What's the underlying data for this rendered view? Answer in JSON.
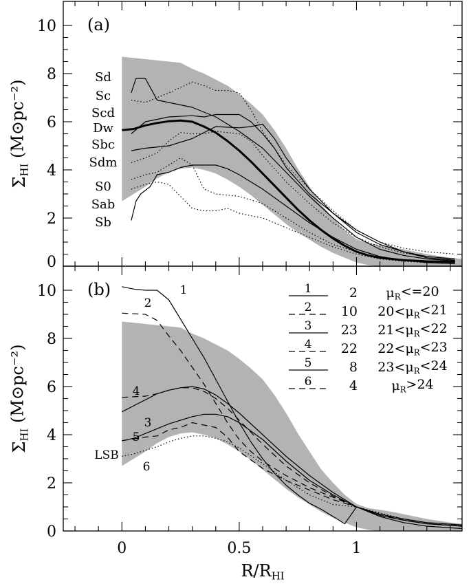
{
  "chart_data": [
    {
      "panel": "(a)",
      "type": "line",
      "xlabel": "",
      "ylabel": "Σ_HI (M⊙pc⁻²)",
      "xlim": [
        -0.25,
        1.45
      ],
      "ylim": [
        0,
        11
      ],
      "yticks": [
        "0",
        "2",
        "4",
        "6",
        "8",
        "10"
      ],
      "xticks": [],
      "band": {
        "x": [
          0,
          0.05,
          0.1,
          0.15,
          0.2,
          0.25,
          0.3,
          0.35,
          0.4,
          0.45,
          0.5,
          0.55,
          0.6,
          0.65,
          0.7,
          0.75,
          0.8,
          0.85,
          0.9,
          0.95,
          1.0,
          1.05,
          1.1,
          1.15,
          1.2,
          1.3,
          1.4,
          1.45
        ],
        "upper": [
          8.7,
          8.65,
          8.6,
          8.55,
          8.5,
          8.45,
          8.2,
          8.0,
          7.75,
          7.5,
          7.15,
          6.75,
          6.3,
          5.65,
          4.9,
          4.05,
          3.3,
          2.55,
          2.0,
          1.5,
          1.12,
          0.95,
          0.88,
          0.8,
          0.7,
          0.5,
          0.35,
          0.3
        ],
        "lower": [
          2.7,
          3.0,
          3.3,
          3.65,
          3.9,
          4.05,
          4.1,
          4.0,
          3.85,
          3.6,
          3.3,
          2.95,
          2.55,
          2.15,
          1.75,
          1.4,
          1.1,
          0.8,
          0.55,
          0.35,
          0.15,
          0.05,
          0.0,
          0.0,
          0.0,
          0.0,
          0.0,
          0.0
        ]
      },
      "type_labels": [
        "Sd",
        "Sc",
        "Scd",
        "Dw",
        "Sbc",
        "Sdm",
        "S0",
        "Sab",
        "Sb"
      ],
      "series": [
        {
          "label": "Sd",
          "style": "solid",
          "x": [
            0.04,
            0.06,
            0.1,
            0.15,
            0.2,
            0.3,
            0.4,
            0.5,
            0.6,
            0.7,
            0.8,
            0.9,
            1.0,
            1.1,
            1.2,
            1.3,
            1.42
          ],
          "y": [
            7.2,
            7.8,
            7.8,
            6.9,
            6.8,
            6.6,
            6.2,
            5.6,
            4.9,
            3.9,
            2.9,
            2.0,
            1.2,
            0.7,
            0.45,
            0.3,
            0.22
          ]
        },
        {
          "label": "Sc",
          "style": "dotted",
          "x": [
            0.04,
            0.1,
            0.2,
            0.3,
            0.35,
            0.4,
            0.45,
            0.5,
            0.55,
            0.6,
            0.7,
            0.8,
            0.9,
            1.0,
            1.1,
            1.2,
            1.3,
            1.42
          ],
          "y": [
            6.9,
            6.8,
            7.2,
            7.65,
            7.5,
            7.3,
            7.3,
            7.2,
            6.5,
            5.6,
            4.2,
            3.2,
            2.3,
            1.5,
            1.0,
            0.75,
            0.6,
            0.5
          ]
        },
        {
          "label": "Scd",
          "style": "solid",
          "x": [
            0.04,
            0.1,
            0.2,
            0.3,
            0.35,
            0.4,
            0.5,
            0.55,
            0.6,
            0.65,
            0.7,
            0.8,
            0.9,
            1.0,
            1.1,
            1.2,
            1.3,
            1.42
          ],
          "y": [
            5.5,
            6.0,
            6.2,
            6.25,
            6.2,
            6.3,
            6.3,
            6.0,
            5.5,
            4.9,
            4.1,
            3.0,
            2.2,
            1.5,
            1.0,
            0.6,
            0.35,
            0.25
          ]
        },
        {
          "label": "Dw",
          "style": "thick",
          "x": [
            0,
            0.05,
            0.1,
            0.15,
            0.2,
            0.25,
            0.3,
            0.35,
            0.4,
            0.45,
            0.5,
            0.55,
            0.6,
            0.65,
            0.7,
            0.75,
            0.8,
            0.85,
            0.9,
            0.95,
            1.0,
            1.05,
            1.1,
            1.15,
            1.2,
            1.3,
            1.42
          ],
          "y": [
            5.65,
            5.7,
            5.85,
            5.95,
            6.02,
            6.05,
            6.0,
            5.8,
            5.55,
            5.2,
            4.8,
            4.35,
            3.85,
            3.35,
            2.85,
            2.35,
            1.9,
            1.5,
            1.15,
            0.85,
            0.6,
            0.45,
            0.35,
            0.3,
            0.25,
            0.2,
            0.18
          ]
        },
        {
          "label": "Sbc",
          "style": "solid",
          "x": [
            0.04,
            0.1,
            0.2,
            0.3,
            0.4,
            0.5,
            0.55,
            0.6,
            0.65,
            0.7,
            0.8,
            0.9,
            1.0,
            1.1,
            1.2,
            1.3,
            1.42
          ],
          "y": [
            4.8,
            4.9,
            5.0,
            5.3,
            5.8,
            5.75,
            5.8,
            5.9,
            5.3,
            4.5,
            3.2,
            2.2,
            1.4,
            0.9,
            0.6,
            0.4,
            0.3
          ]
        },
        {
          "label": "Sdm",
          "style": "dotted",
          "x": [
            0.04,
            0.1,
            0.15,
            0.2,
            0.25,
            0.3,
            0.35,
            0.4,
            0.5,
            0.55,
            0.6,
            0.7,
            0.8,
            0.9,
            1.0,
            1.1,
            1.2,
            1.3,
            1.42
          ],
          "y": [
            4.3,
            4.5,
            4.7,
            5.2,
            5.55,
            5.5,
            5.5,
            5.6,
            5.5,
            5.2,
            4.6,
            3.5,
            2.6,
            1.8,
            1.2,
            0.8,
            0.55,
            0.4,
            0.3
          ]
        },
        {
          "label": "S0",
          "style": "solid",
          "x": [
            0.04,
            0.06,
            0.08,
            0.12,
            0.15,
            0.2,
            0.25,
            0.3,
            0.35,
            0.4,
            0.45,
            0.5,
            0.6,
            0.7,
            0.8,
            0.9,
            1.0,
            1.1,
            1.2,
            1.3,
            1.42
          ],
          "y": [
            1.9,
            2.7,
            3.0,
            3.3,
            3.8,
            3.9,
            4.1,
            4.2,
            4.2,
            4.2,
            4.05,
            3.8,
            3.2,
            2.5,
            1.8,
            1.2,
            0.7,
            0.4,
            0.25,
            0.15,
            0.1
          ]
        },
        {
          "label": "Sab",
          "style": "dotted",
          "x": [
            0.04,
            0.1,
            0.15,
            0.2,
            0.25,
            0.3,
            0.35,
            0.4,
            0.5,
            0.6,
            0.7,
            0.8,
            0.9,
            1.0,
            1.1,
            1.2,
            1.3,
            1.42
          ],
          "y": [
            3.6,
            3.8,
            3.9,
            4.2,
            4.5,
            4.2,
            3.2,
            3.0,
            2.9,
            2.6,
            2.0,
            1.4,
            0.9,
            0.6,
            0.35,
            0.25,
            0.2,
            0.15
          ]
        },
        {
          "label": "Sb",
          "style": "dotted",
          "x": [
            0.04,
            0.1,
            0.15,
            0.2,
            0.25,
            0.3,
            0.35,
            0.4,
            0.45,
            0.5,
            0.6,
            0.7,
            0.8,
            0.9,
            1.0,
            1.1,
            1.2,
            1.3,
            1.42
          ],
          "y": [
            3.2,
            3.4,
            3.5,
            3.4,
            2.9,
            2.4,
            2.3,
            2.3,
            2.4,
            2.2,
            2.0,
            1.6,
            1.2,
            0.8,
            0.5,
            0.3,
            0.2,
            0.15,
            0.1
          ]
        }
      ]
    },
    {
      "panel": "(b)",
      "type": "line",
      "xlabel": "R/R_HI",
      "ylabel": "Σ_HI (M⊙pc⁻²)",
      "xlim": [
        -0.25,
        1.45
      ],
      "ylim": [
        0,
        11
      ],
      "yticks": [
        "0",
        "2",
        "4",
        "6",
        "8",
        "10"
      ],
      "xticks": [
        "0",
        "0.5",
        "1"
      ],
      "band": {
        "x": [
          0,
          0.05,
          0.1,
          0.15,
          0.2,
          0.25,
          0.3,
          0.35,
          0.4,
          0.45,
          0.5,
          0.55,
          0.6,
          0.65,
          0.7,
          0.75,
          0.8,
          0.85,
          0.9,
          0.95,
          1.0,
          1.05,
          1.1,
          1.15,
          1.2,
          1.3,
          1.4,
          1.45
        ],
        "upper": [
          8.7,
          8.65,
          8.6,
          8.55,
          8.5,
          8.45,
          8.2,
          8.0,
          7.75,
          7.5,
          7.15,
          6.75,
          6.3,
          5.65,
          4.9,
          4.05,
          3.3,
          2.55,
          2.0,
          1.5,
          1.12,
          0.95,
          0.88,
          0.8,
          0.7,
          0.5,
          0.35,
          0.3
        ],
        "lower": [
          2.7,
          3.0,
          3.3,
          3.65,
          3.9,
          4.05,
          4.1,
          4.0,
          3.85,
          3.6,
          3.3,
          2.95,
          2.55,
          2.15,
          1.75,
          1.4,
          1.1,
          0.8,
          0.55,
          0.35,
          0.15,
          0.05,
          0.0,
          0.0,
          0.0,
          0.0,
          0.0,
          0.0
        ]
      },
      "series": [
        {
          "label": "1",
          "style": "solid",
          "x": [
            0,
            0.05,
            0.1,
            0.15,
            0.2,
            0.25,
            0.3,
            0.35,
            0.4,
            0.45,
            0.5,
            0.55,
            0.6,
            0.65,
            0.7,
            0.75,
            0.8,
            0.85,
            0.9,
            0.95,
            1.0,
            1.05,
            1.1,
            1.2,
            1.3,
            1.45
          ],
          "y": [
            10.15,
            10.05,
            10.0,
            10.0,
            9.6,
            8.8,
            8.0,
            7.2,
            6.3,
            5.4,
            4.5,
            3.7,
            3.0,
            2.4,
            1.9,
            1.5,
            1.15,
            0.9,
            0.6,
            0.3,
            1.0,
            0.8,
            0.6,
            0.35,
            0.2,
            0.1
          ]
        },
        {
          "label": "2",
          "style": "dashed",
          "x": [
            0,
            0.1,
            0.15,
            0.2,
            0.25,
            0.3,
            0.35,
            0.4,
            0.45,
            0.5,
            0.55,
            0.6,
            0.7,
            0.8,
            0.9,
            1.0,
            1.1,
            1.2,
            1.3,
            1.45
          ],
          "y": [
            9.05,
            9.0,
            8.75,
            8.1,
            7.5,
            6.8,
            6.1,
            5.3,
            4.5,
            3.8,
            3.3,
            2.9,
            2.3,
            1.8,
            1.4,
            1.0,
            0.7,
            0.45,
            0.3,
            0.2
          ]
        },
        {
          "label": "3",
          "style": "solid",
          "x": [
            0,
            0.05,
            0.1,
            0.15,
            0.2,
            0.25,
            0.3,
            0.35,
            0.4,
            0.45,
            0.5,
            0.6,
            0.7,
            0.8,
            0.9,
            1.0,
            1.1,
            1.2,
            1.3,
            1.45
          ],
          "y": [
            4.95,
            5.2,
            5.45,
            5.7,
            5.85,
            5.95,
            6.0,
            5.9,
            5.65,
            5.3,
            4.9,
            4.0,
            3.1,
            2.3,
            1.6,
            1.0,
            0.65,
            0.45,
            0.3,
            0.2
          ]
        },
        {
          "label": "4",
          "style": "dashed",
          "x": [
            0,
            0.1,
            0.15,
            0.2,
            0.25,
            0.3,
            0.35,
            0.4,
            0.45,
            0.5,
            0.6,
            0.7,
            0.8,
            0.9,
            1.0,
            1.1,
            1.2,
            1.3,
            1.45
          ],
          "y": [
            5.55,
            5.6,
            5.7,
            5.85,
            5.95,
            5.95,
            5.8,
            5.5,
            5.1,
            4.6,
            3.6,
            2.7,
            2.0,
            1.45,
            1.0,
            0.7,
            0.5,
            0.35,
            0.25
          ]
        },
        {
          "label": "5",
          "style": "solid",
          "x": [
            0,
            0.05,
            0.1,
            0.15,
            0.2,
            0.25,
            0.3,
            0.35,
            0.4,
            0.45,
            0.5,
            0.6,
            0.7,
            0.8,
            0.9,
            1.0,
            1.1,
            1.2,
            1.3,
            1.45
          ],
          "y": [
            3.75,
            3.85,
            4.05,
            4.25,
            4.45,
            4.6,
            4.75,
            4.85,
            4.85,
            4.75,
            4.5,
            3.8,
            2.9,
            2.1,
            1.5,
            1.0,
            0.65,
            0.45,
            0.3,
            0.2
          ]
        },
        {
          "label": "6",
          "style": "dashed",
          "x": [
            0,
            0.1,
            0.15,
            0.2,
            0.25,
            0.3,
            0.35,
            0.4,
            0.45,
            0.5,
            0.6,
            0.7,
            0.8,
            0.9,
            1.0,
            1.1,
            1.2,
            1.3,
            1.45
          ],
          "y": [
            3.75,
            3.9,
            3.95,
            4.2,
            4.3,
            4.5,
            4.4,
            4.3,
            3.9,
            3.3,
            2.6,
            2.1,
            1.7,
            1.3,
            1.0,
            0.7,
            0.5,
            0.35,
            0.25
          ]
        },
        {
          "label": "LSB",
          "style": "dotted",
          "x": [
            0,
            0.05,
            0.1,
            0.15,
            0.2,
            0.25,
            0.3,
            0.35,
            0.4,
            0.45,
            0.5,
            0.6,
            0.7,
            0.8,
            0.9,
            1.0,
            1.1,
            1.2,
            1.3,
            1.45
          ],
          "y": [
            3.1,
            3.2,
            3.35,
            3.5,
            3.7,
            3.85,
            3.95,
            3.95,
            3.85,
            3.7,
            3.45,
            2.8,
            2.1,
            1.5,
            1.1,
            1.0,
            0.75,
            0.5,
            0.35,
            0.25
          ]
        }
      ],
      "legend": [
        {
          "key": "1",
          "style": "solid",
          "count": "2",
          "range": "μ_R<=20"
        },
        {
          "key": "2",
          "style": "dashed",
          "count": "10",
          "range": "20<μ_R<21"
        },
        {
          "key": "3",
          "style": "solid",
          "count": "23",
          "range": "21<μ_R<22"
        },
        {
          "key": "4",
          "style": "dashed",
          "count": "22",
          "range": "22<μ_R<23"
        },
        {
          "key": "5",
          "style": "solid",
          "count": "8",
          "range": "23<μ_R<24"
        },
        {
          "key": "6",
          "style": "dashed",
          "count": "4",
          "range": "μ_R>24"
        }
      ]
    }
  ]
}
